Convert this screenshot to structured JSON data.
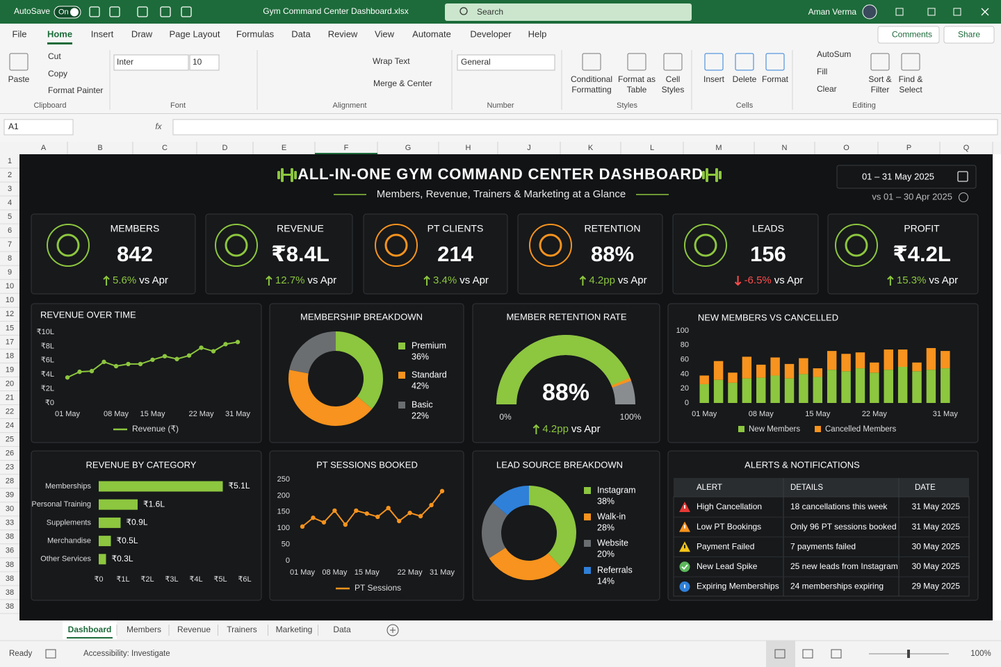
{
  "window": {
    "autosave": "AutoSave",
    "autosave_state": "On",
    "file_name": "Gym Command Center Dashboard.xlsx",
    "search": "Search",
    "user": "Aman Verma"
  },
  "ribbon": {
    "tabs": [
      "File",
      "Home",
      "Insert",
      "Draw",
      "Page Layout",
      "Formulas",
      "Data",
      "Review",
      "View",
      "Automate",
      "Developer",
      "Help"
    ],
    "active_tab": "Home",
    "comments": "Comments",
    "share": "Share",
    "groups": [
      {
        "name": "Clipboard",
        "items": [
          [
            "Paste"
          ],
          [
            "Cut"
          ],
          [
            "Copy"
          ],
          [
            "Format Painter"
          ]
        ]
      },
      {
        "name": "Font",
        "items": [
          [
            "Inter"
          ],
          [
            "10"
          ]
        ]
      },
      {
        "name": "Alignment",
        "items": [
          [
            "Wrap Text"
          ],
          [
            "Merge & Center"
          ]
        ]
      },
      {
        "name": "Number",
        "items": [
          [
            "General"
          ]
        ]
      },
      {
        "name": "Styles",
        "items": [
          [
            "Conditional",
            "Formatting"
          ],
          [
            "Format as",
            "Table"
          ],
          [
            "Cell",
            "Styles"
          ]
        ]
      },
      {
        "name": "Cells",
        "items": [
          [
            "Insert"
          ],
          [
            "Delete"
          ],
          [
            "Format"
          ]
        ]
      },
      {
        "name": "Editing",
        "items": [
          [
            "AutoSum"
          ],
          [
            "Fill"
          ],
          [
            "Clear"
          ],
          [
            "Sort &",
            "Filter"
          ],
          [
            "Find &",
            "Select"
          ]
        ]
      }
    ]
  },
  "formula_bar": {
    "name_box": "A1",
    "fx": "fx"
  },
  "grid": {
    "columns": [
      "A",
      "B",
      "C",
      "D",
      "E",
      "F",
      "G",
      "H",
      "J",
      "K",
      "L",
      "M",
      "N",
      "O",
      "P",
      "Q"
    ],
    "rows": [
      "1",
      "2",
      "3",
      "4",
      "5",
      "6",
      "7",
      "8",
      "9",
      "10",
      "10",
      "12",
      "15",
      "17",
      "18",
      "19",
      "20",
      "21",
      "22",
      "24",
      "25",
      "26",
      "23",
      "28",
      "39",
      "30",
      "33",
      "38",
      "36",
      "38",
      "38",
      "38",
      "38"
    ]
  },
  "dashboard": {
    "title": "ALL-IN-ONE GYM COMMAND CENTER DASHBOARD",
    "subtitle": "Members, Revenue, Trainers & Marketing at a Glance",
    "date_range": "01 – 31 May 2025",
    "comparison": "vs 01 – 30 Apr 2025",
    "kpis": [
      {
        "label": "MEMBERS",
        "value": "842",
        "change": "5.6%",
        "compare": "vs Apr",
        "color": "#8dc63f"
      },
      {
        "label": "REVENUE",
        "value": "₹8.4L",
        "change": "12.7%",
        "compare": "vs Apr",
        "color": "#8dc63f"
      },
      {
        "label": "PT CLIENTS",
        "value": "214",
        "change": "3.4%",
        "compare": "vs Apr",
        "color": "#f7931e"
      },
      {
        "label": "RETENTION",
        "value": "88%",
        "change": "4.2pp",
        "compare": "vs Apr",
        "color": "#f7931e"
      },
      {
        "label": "LEADS",
        "value": "156",
        "change": "-6.5%",
        "compare": "vs Apr",
        "color": "#8dc63f"
      },
      {
        "label": "PROFIT",
        "value": "₹4.2L",
        "change": "15.3%",
        "compare": "vs Apr",
        "color": "#8dc63f"
      }
    ]
  },
  "chart_data": [
    {
      "type": "line",
      "title": "REVENUE OVER TIME",
      "categories": [
        "01 May",
        null,
        null,
        null,
        "08 May",
        null,
        null,
        "15 May",
        null,
        null,
        null,
        "22 May",
        null,
        null,
        "31 May"
      ],
      "series": [
        {
          "name": "Revenue (₹)",
          "color": "#8dc63f",
          "values": [
            3.6,
            4.4,
            4.5,
            5.8,
            5.2,
            5.5,
            5.5,
            6.1,
            6.6,
            6.2,
            6.7,
            7.8,
            7.3,
            8.3,
            8.6
          ]
        }
      ],
      "ylim": [
        0,
        10
      ],
      "yticks": [
        {
          "value": 0,
          "label": "₹0"
        },
        {
          "value": 2,
          "label": "₹2L"
        },
        {
          "value": 4,
          "label": "₹4L"
        },
        {
          "value": 6,
          "label": "₹6L"
        },
        {
          "value": 8,
          "label": "₹8L"
        },
        {
          "value": 10,
          "label": "₹10L"
        }
      ]
    },
    {
      "type": "donut",
      "title": "MEMBERSHIP BREAKDOWN",
      "categories": [
        "Premium",
        "Standard",
        "Basic"
      ],
      "values": [
        36,
        42,
        22
      ],
      "value_labels": [
        "36%",
        "42%",
        "22%"
      ],
      "colors": [
        "#8dc63f",
        "#f7931e",
        "#6b6e70"
      ]
    },
    {
      "type": "gauge",
      "title": "MEMBER RETENTION RATE",
      "value": 88,
      "value_label": "88%",
      "ylim": [
        0,
        100
      ],
      "ticks": [
        {
          "value": 0,
          "label": "0%"
        },
        {
          "value": 100,
          "label": "100%"
        }
      ],
      "change": "4.2pp",
      "compare": "vs Apr",
      "color": "#8dc63f",
      "track_color": "#8a8d90"
    },
    {
      "type": "stacked_bar",
      "title": "NEW MEMBERS VS CANCELLED",
      "categories": [
        "01 May",
        null,
        null,
        null,
        "08 May",
        null,
        null,
        null,
        "15 May",
        null,
        null,
        null,
        "22 May",
        null,
        null,
        null,
        null,
        "31 May"
      ],
      "series": [
        {
          "name": "New Members",
          "color": "#8dc63f",
          "values": [
            26,
            32,
            28,
            34,
            35,
            38,
            34,
            40,
            36,
            46,
            44,
            48,
            42,
            46,
            50,
            44,
            46,
            48
          ]
        },
        {
          "name": "Cancelled Members",
          "color": "#f7931e",
          "values": [
            12,
            26,
            14,
            30,
            18,
            25,
            20,
            22,
            12,
            26,
            24,
            22,
            14,
            28,
            24,
            12,
            30,
            24
          ]
        }
      ],
      "ylim": [
        0,
        100
      ],
      "yticks": [
        0,
        20,
        40,
        60,
        80,
        100
      ]
    },
    {
      "type": "hbar",
      "title": "REVENUE BY CATEGORY",
      "categories": [
        "Memberships",
        "Personal Training",
        "Supplements",
        "Merchandise",
        "Other Services"
      ],
      "values": [
        5.1,
        1.6,
        0.9,
        0.5,
        0.3
      ],
      "value_labels": [
        "₹5.1L",
        "₹1.6L",
        "₹0.9L",
        "₹0.5L",
        "₹0.3L"
      ],
      "color": "#8dc63f",
      "xlim": [
        0,
        6
      ],
      "xticks": [
        {
          "value": 0,
          "label": "₹0"
        },
        {
          "value": 1,
          "label": "₹1L"
        },
        {
          "value": 2,
          "label": "₹2L"
        },
        {
          "value": 3,
          "label": "₹3L"
        },
        {
          "value": 4,
          "label": "₹4L"
        },
        {
          "value": 5,
          "label": "₹5L"
        },
        {
          "value": 6,
          "label": "₹6L"
        }
      ]
    },
    {
      "type": "line",
      "title": "PT SESSIONS BOOKED",
      "categories": [
        "01 May",
        null,
        null,
        "08 May",
        null,
        null,
        "15 May",
        null,
        null,
        null,
        "22 May",
        null,
        null,
        "31 May"
      ],
      "series": [
        {
          "name": "PT Sessions",
          "color": "#f7931e",
          "values": [
            105,
            132,
            118,
            154,
            111,
            154,
            145,
            135,
            162,
            122,
            147,
            137,
            171,
            214
          ]
        }
      ],
      "ylim": [
        0,
        250
      ],
      "yticks": [
        0,
        50,
        100,
        150,
        200,
        250
      ]
    },
    {
      "type": "donut",
      "title": "LEAD SOURCE BREAKDOWN",
      "categories": [
        "Instagram",
        "Walk-in",
        "Website",
        "Referrals"
      ],
      "values": [
        38,
        28,
        20,
        14
      ],
      "value_labels": [
        "38%",
        "28%",
        "20%",
        "14%"
      ],
      "colors": [
        "#8dc63f",
        "#f7931e",
        "#6b6e70",
        "#2f80d8"
      ]
    }
  ],
  "alerts": {
    "title": "ALERTS  &  NOTIFICATIONS",
    "columns": [
      "ALERT",
      "DETAILS",
      "DATE"
    ],
    "rows": [
      {
        "icon": "error",
        "alert": "High Cancellation",
        "details": "18 cancellations this week",
        "date": "31 May 2025"
      },
      {
        "icon": "warning",
        "alert": "Low PT Bookings",
        "details": "Only 96 PT sessions booked",
        "date": "31 May 2025"
      },
      {
        "icon": "caution",
        "alert": "Payment Failed",
        "details": "7 payments failed",
        "date": "30 May 2025"
      },
      {
        "icon": "success",
        "alert": "New Lead Spike",
        "details": "25 new leads from Instagram",
        "date": "30 May 2025"
      },
      {
        "icon": "info",
        "alert": "Expiring Memberships",
        "details": "24 memberships expiring",
        "date": "29 May 2025"
      }
    ]
  },
  "sheets": {
    "tabs": [
      "Dashboard",
      "Members",
      "Revenue",
      "Trainers",
      "Marketing",
      "Data"
    ],
    "active": "Dashboard"
  },
  "status": {
    "ready": "Ready",
    "accessibility": "Accessibility: Investigate",
    "zoom": "100%"
  }
}
